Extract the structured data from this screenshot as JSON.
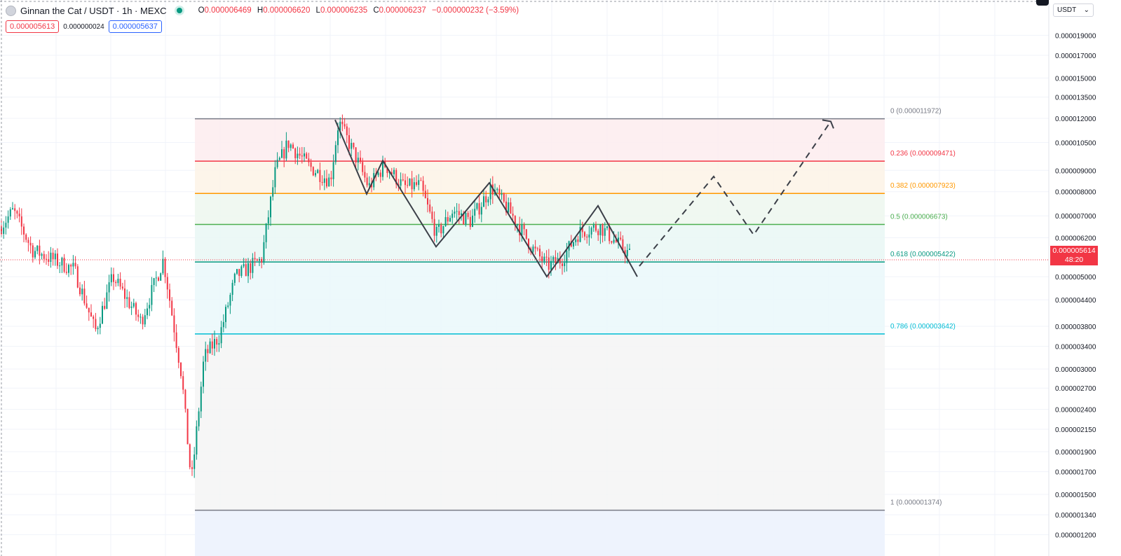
{
  "header": {
    "symbol": "Ginnan the Cat / USDT · 1h · MEXC",
    "o_label": "O",
    "o": "0.000006469",
    "h_label": "H",
    "h": "0.000006620",
    "l_label": "L",
    "l": "0.000006235",
    "c_label": "C",
    "c": "0.000006237",
    "change": "−0.000000232 (−3.59%)"
  },
  "trade": {
    "sell": "0.000005613",
    "spread": "0.000000024",
    "buy": "0.000005637"
  },
  "currency_select": "USDT",
  "current_price": {
    "price": "0.000005614",
    "countdown": "48:20"
  },
  "colors": {
    "up": "#089981",
    "down": "#f23645",
    "grid": "#f0f3fa"
  },
  "chart_data": {
    "type": "candlestick",
    "yscale": "log",
    "ylim": [
      1.15e-06,
      2.15e-05
    ],
    "y_ticks": [
      "0.000019000",
      "0.000017000",
      "0.000015000",
      "0.000013500",
      "0.000012000",
      "0.000010500",
      "0.000009000",
      "0.000008000",
      "0.000007000",
      "0.000006200",
      "0.000005000",
      "0.000004400",
      "0.000003800",
      "0.000003400",
      "0.000003000",
      "0.000002700",
      "0.000002400",
      "0.000002150",
      "0.000001900",
      "0.000001700",
      "0.000001500",
      "0.000001340",
      "0.000001200"
    ],
    "fibonacci": [
      {
        "label": "0 (0.000011972)",
        "value": 1.1972e-05,
        "color": "#787b86"
      },
      {
        "label": "0.236 (0.000009471)",
        "value": 9.471e-06,
        "color": "#f23645"
      },
      {
        "label": "0.382 (0.000007923)",
        "value": 7.923e-06,
        "color": "#ff9800"
      },
      {
        "label": "0.5 (0.000006673)",
        "value": 6.673e-06,
        "color": "#4caf50"
      },
      {
        "label": "0.618 (0.000005422)",
        "value": 5.422e-06,
        "color": "#089981"
      },
      {
        "label": "0.786 (0.000003642)",
        "value": 3.642e-06,
        "color": "#00bcd4"
      },
      {
        "label": "1 (0.000001374)",
        "value": 1.374e-06,
        "color": "#787b86"
      }
    ],
    "pattern_solid": [
      [
        1.19e-05,
        7.9e-06
      ],
      [
        9.5e-06,
        5.9e-06
      ],
      [
        8.4e-06,
        5e-06
      ],
      [
        7.4e-06,
        5e-06
      ]
    ],
    "pattern_path_solid": [
      1.19e-05,
      7.9e-06,
      9.5e-06,
      5.9e-06,
      8.4e-06,
      5e-06,
      7.4e-06,
      5e-06
    ],
    "pattern_path_dashed": [
      5e-06,
      5.4e-06,
      8.7e-06,
      6.3e-06,
      1.18e-05
    ]
  }
}
